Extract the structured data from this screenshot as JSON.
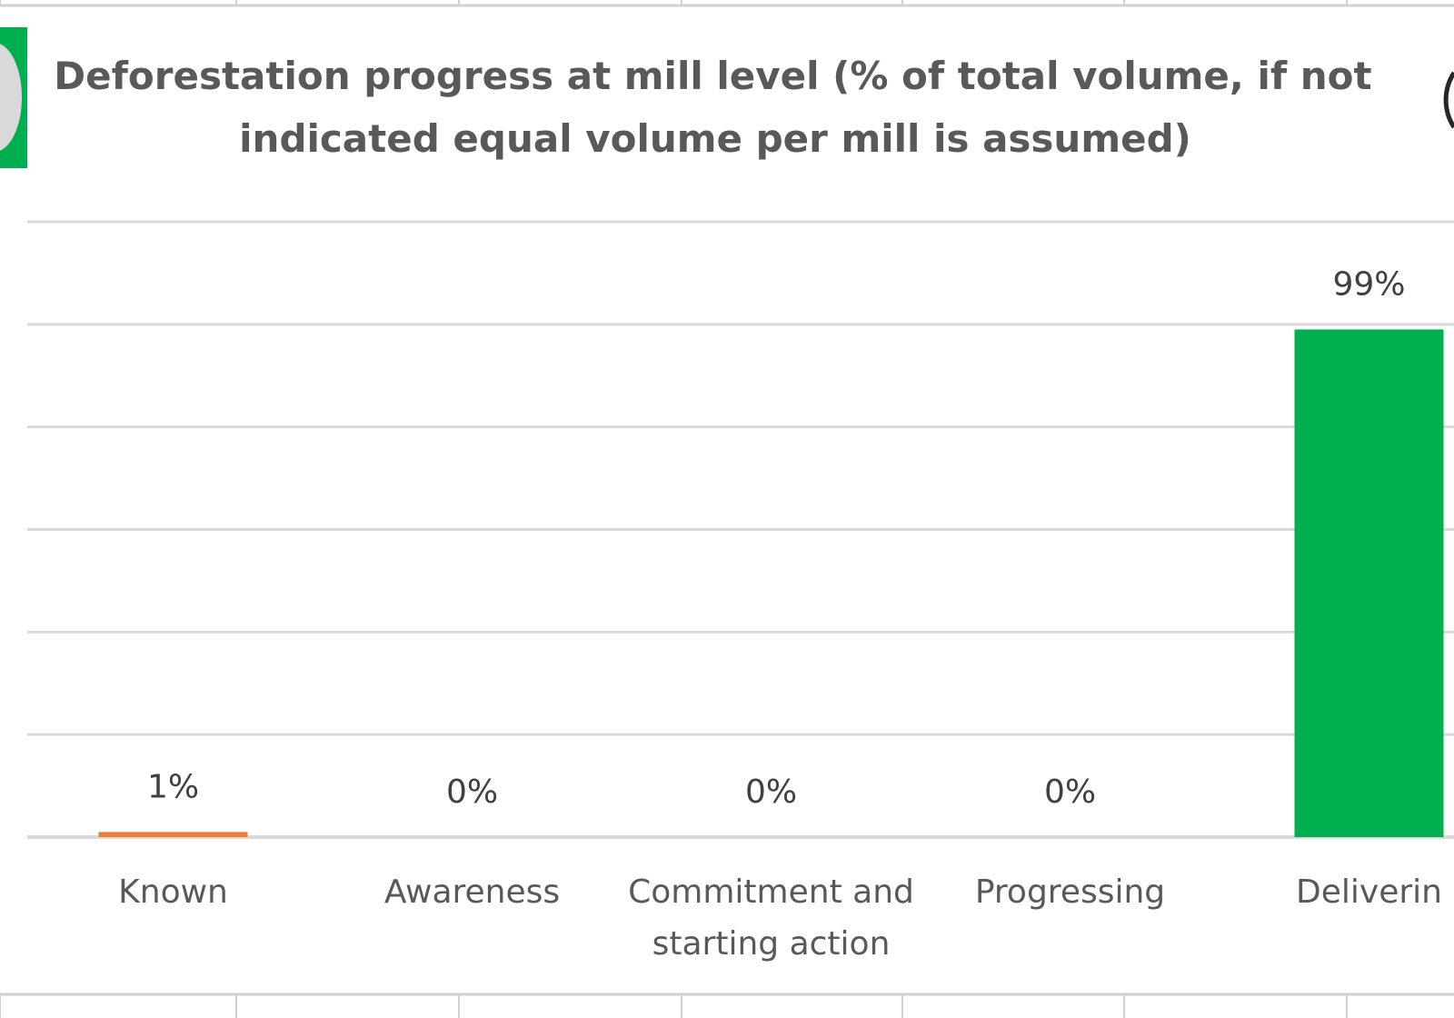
{
  "colors": {
    "background": "#ffffff",
    "gridline": "#d9d9d9",
    "sheet_gridline": "#d0d0d0",
    "text": "#595959",
    "legend_green": "#00b050",
    "legend_grey_circle": "#d9d9d9"
  },
  "chart_data": {
    "type": "bar",
    "title": "Deforestation progress at mill level (% of total volume, if not indicated equal volume per mill is assumed)",
    "title_lines": [
      "Deforestation progress at mill level (% of total volume, if not",
      "indicated equal volume per mill is assumed)"
    ],
    "categories": [
      "Known",
      "Awareness",
      "Commitment and starting action",
      "Progressing",
      "Delivering"
    ],
    "category_lines": [
      [
        "Known"
      ],
      [
        "Awareness"
      ],
      [
        "Commitment and",
        "starting action"
      ],
      [
        "Progressing"
      ],
      [
        "Deliverin"
      ]
    ],
    "values": [
      1,
      0,
      0,
      0,
      99
    ],
    "value_labels": [
      "1%",
      "0%",
      "0%",
      "0%",
      "99%"
    ],
    "bar_colors": [
      "#ed7d31",
      "#ed7d31",
      "#ed7d31",
      "#ed7d31",
      "#00b050"
    ],
    "ylim": [
      0,
      120
    ],
    "y_gridline_step": 20,
    "grid": true,
    "xlabel": "",
    "ylabel": ""
  }
}
